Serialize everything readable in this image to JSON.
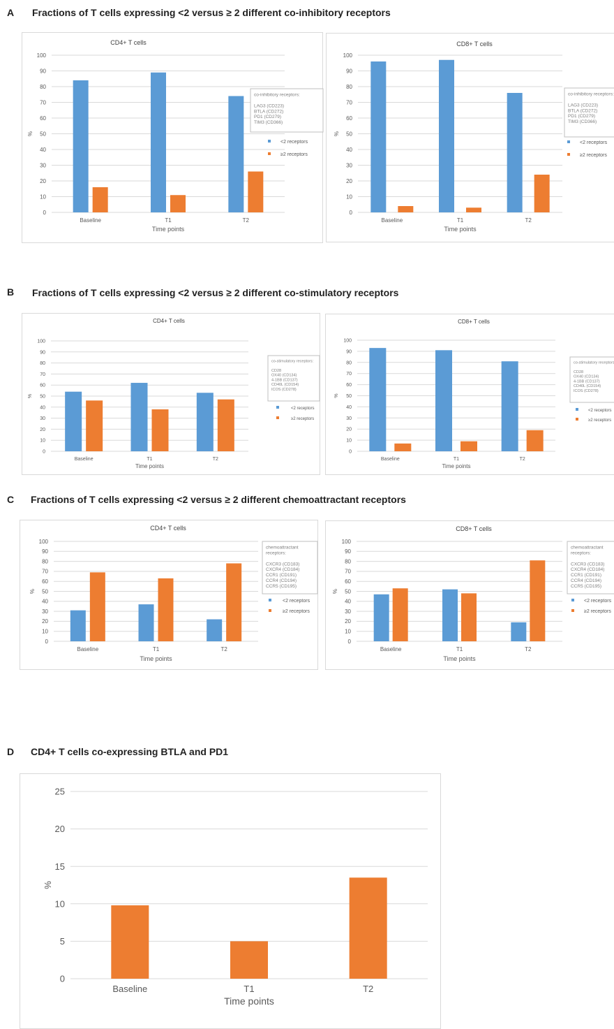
{
  "sections": [
    {
      "letter": "A",
      "title": "Fractions of T cells expressing <2 versus ≥ 2 different co-inhibitory receptors"
    },
    {
      "letter": "B",
      "title": "Fractions of  T cells expressing <2 versus ≥ 2 different co-stimulatory receptors"
    },
    {
      "letter": "C",
      "title": "Fractions of T cells expressing <2 versus ≥ 2 different chemoattractant receptors"
    },
    {
      "letter": "D",
      "title": "CD4+ T cells co-expressing BTLA and PD1"
    }
  ],
  "colors": {
    "blue": "#5b9bd5",
    "orange": "#ed7d31",
    "grid": "#d9d9d9",
    "axis_text": "#595959"
  },
  "chart_data": [
    {
      "id": "A1",
      "type": "bar",
      "title": "CD4+ T cells",
      "xlabel": "Time points",
      "ylabel": "%",
      "categories": [
        "Baseline",
        "T1",
        "T2"
      ],
      "ylim": [
        0,
        100
      ],
      "yticks": [
        0,
        10,
        20,
        30,
        40,
        50,
        60,
        70,
        80,
        90,
        100
      ],
      "series": [
        {
          "name": "<2 receptors",
          "color": "#5b9bd5",
          "values": [
            84,
            89,
            74
          ]
        },
        {
          "name": "≥2 receptors",
          "color": "#ed7d31",
          "values": [
            16,
            11,
            26
          ]
        }
      ],
      "legend_box": [
        "co-inhibitory receptors:",
        "",
        "LAG3 (CD223)",
        "BTLA (CD272)",
        "PD1 (CD279)",
        "TIM3 (CD366)"
      ],
      "legend_position": "right",
      "grid": true
    },
    {
      "id": "A2",
      "type": "bar",
      "title": "CD8+ T cells",
      "xlabel": "Time points",
      "ylabel": "%",
      "categories": [
        "Baseline",
        "T1",
        "T2"
      ],
      "ylim": [
        0,
        100
      ],
      "yticks": [
        0,
        10,
        20,
        30,
        40,
        50,
        60,
        70,
        80,
        90,
        100
      ],
      "series": [
        {
          "name": "<2 receptors",
          "color": "#5b9bd5",
          "values": [
            96,
            97,
            76
          ]
        },
        {
          "name": "≥2 receptors",
          "color": "#ed7d31",
          "values": [
            4,
            3,
            24
          ]
        }
      ],
      "legend_box": [
        "co-inhibitory receptors:",
        "",
        "LAG3 (CD223)",
        "BTLA (CD272)",
        "PD1 (CD279)",
        "TIM3 (CD366)"
      ],
      "legend_position": "right",
      "grid": true
    },
    {
      "id": "B1",
      "type": "bar",
      "title": "CD4+ T cells",
      "xlabel": "Time points",
      "ylabel": "%",
      "categories": [
        "Baseline",
        "T1",
        "T2"
      ],
      "ylim": [
        0,
        100
      ],
      "yticks": [
        0,
        10,
        20,
        30,
        40,
        50,
        60,
        70,
        80,
        90,
        100
      ],
      "series": [
        {
          "name": "<2 receptors",
          "color": "#5b9bd5",
          "values": [
            54,
            62,
            53
          ]
        },
        {
          "name": "≥2 receptors",
          "color": "#ed7d31",
          "values": [
            46,
            38,
            47
          ]
        }
      ],
      "legend_box": [
        "co-stimulatory receptors:",
        "",
        "CD28",
        "OX40 (CD134)",
        "4-1BB (CD137)",
        "CD40L (CD154)",
        "ICOS (CD278)"
      ],
      "legend_position": "right",
      "grid": true
    },
    {
      "id": "B2",
      "type": "bar",
      "title": "CD8+ T cells",
      "xlabel": "Time points",
      "ylabel": "%",
      "categories": [
        "Baseline",
        "T1",
        "T2"
      ],
      "ylim": [
        0,
        100
      ],
      "yticks": [
        0,
        10,
        20,
        30,
        40,
        50,
        60,
        70,
        80,
        90,
        100
      ],
      "series": [
        {
          "name": "<2 receptors",
          "color": "#5b9bd5",
          "values": [
            93,
            91,
            81
          ]
        },
        {
          "name": "≥2 receptors",
          "color": "#ed7d31",
          "values": [
            7,
            9,
            19
          ]
        }
      ],
      "legend_box": [
        "co-stimulatory receptors:",
        "",
        "CD28",
        "OX40 (CD134)",
        "4-1BB (CD137)",
        "CD40L (CD154)",
        "ICOS (CD278)"
      ],
      "legend_position": "right",
      "grid": true
    },
    {
      "id": "C1",
      "type": "bar",
      "title": "CD4+ T cells",
      "xlabel": "Time points",
      "ylabel": "%",
      "categories": [
        "Baseline",
        "T1",
        "T2"
      ],
      "ylim": [
        0,
        100
      ],
      "yticks": [
        0,
        10,
        20,
        30,
        40,
        50,
        60,
        70,
        80,
        90,
        100
      ],
      "series": [
        {
          "name": "<2 receptors",
          "color": "#5b9bd5",
          "values": [
            31,
            37,
            22
          ]
        },
        {
          "name": "≥2 receptors",
          "color": "#ed7d31",
          "values": [
            69,
            63,
            78
          ]
        }
      ],
      "legend_box": [
        "chemoattractant",
        "receptors:",
        "",
        "CXCR3 (CD183)",
        "CXCR4 (CD184)",
        "CCR1 (CD191)",
        "CCR4 (CD194)",
        "CCR5 (CD195)"
      ],
      "legend_position": "right",
      "grid": true
    },
    {
      "id": "C2",
      "type": "bar",
      "title": "CD8+ T cells",
      "xlabel": "Time points",
      "ylabel": "%",
      "categories": [
        "Baseline",
        "T1",
        "T2"
      ],
      "ylim": [
        0,
        100
      ],
      "yticks": [
        0,
        10,
        20,
        30,
        40,
        50,
        60,
        70,
        80,
        90,
        100
      ],
      "series": [
        {
          "name": "<2 receptors",
          "color": "#5b9bd5",
          "values": [
            47,
            52,
            19
          ]
        },
        {
          "name": "≥2 receptors",
          "color": "#ed7d31",
          "values": [
            53,
            48,
            81
          ]
        }
      ],
      "legend_box": [
        "chemoattractant",
        "receptors:",
        "",
        "CXCR3 (CD183)",
        "CXCR4 (CD184)",
        "CCR1 (CD191)",
        "CCR4 (CD194)",
        "CCR5 (CD195)"
      ],
      "legend_position": "right",
      "grid": true
    },
    {
      "id": "D",
      "type": "bar",
      "title": "",
      "xlabel": "Time points",
      "ylabel": "%",
      "categories": [
        "Baseline",
        "T1",
        "T2"
      ],
      "ylim": [
        0,
        25
      ],
      "yticks": [
        0,
        5,
        10,
        15,
        20,
        25
      ],
      "series": [
        {
          "color": "#ed7d31",
          "values": [
            9.8,
            5.0,
            13.5
          ]
        }
      ],
      "legend_box": [],
      "legend_position": "none",
      "grid": true
    }
  ]
}
